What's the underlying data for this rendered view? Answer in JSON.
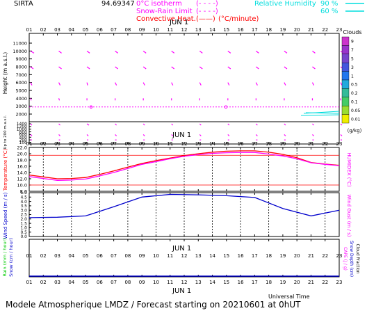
{
  "station": "SIRTA",
  "station_code": "94.69347",
  "header": {
    "isotherm_label": "0°C isotherm",
    "isotherm_key": "(- - - -)",
    "snow_rain_label": "Snow-Rain Limit",
    "snow_rain_key": "(- - - -)",
    "convective_label": "Convective Heat.",
    "convective_key": "(——)",
    "convective_unit": "(°C/minute)",
    "rh_label": "Relative Humidity",
    "rh_90": "90 %",
    "rh_60": "60 %"
  },
  "colors": {
    "magenta": "#ff00ff",
    "red": "#ff0000",
    "cyan": "#00dddd",
    "blue": "#0000cc",
    "green": "#00cc00",
    "black": "#000000"
  },
  "date_label": "JUN   1",
  "hour_labels": [
    "01",
    "02",
    "03",
    "04",
    "05",
    "06",
    "07",
    "08",
    "09",
    "10",
    "11",
    "12",
    "13",
    "14",
    "15",
    "16",
    "17",
    "18",
    "19",
    "20",
    "21",
    "22",
    "23"
  ],
  "footer": "Modele Atmospherique LMDZ / Forecast starting on 20210601 at 0hUT",
  "universal_time": "Universal Time",
  "clouds": {
    "title": "Clouds",
    "unit": "(g/kg)",
    "levels": [
      {
        "label": "9",
        "color": "#cc33cc"
      },
      {
        "label": "7",
        "color": "#9933cc"
      },
      {
        "label": "5",
        "color": "#7744cc"
      },
      {
        "label": "3",
        "color": "#4455dd"
      },
      {
        "label": "1",
        "color": "#2277ee"
      },
      {
        "label": "0.5",
        "color": "#22aadd"
      },
      {
        "label": "0.2",
        "color": "#33bb99"
      },
      {
        "label": "0.1",
        "color": "#44cc66"
      },
      {
        "label": "0.05",
        "color": "#99dd33"
      },
      {
        "label": "0.01",
        "color": "#eeee00"
      }
    ]
  },
  "chart_data": [
    {
      "type": "wind-barbs",
      "ylabel": "Height  (m a.s.l.)",
      "ylabel2": "Up to 200 m a.s.l.",
      "upper_ticks": [
        "11000",
        "10000",
        "9000",
        "8000",
        "7000",
        "6000",
        "5000",
        "4000",
        "3000",
        "2000"
      ],
      "lower_ticks": [
        "1400",
        "1200",
        "1000",
        "800",
        "600",
        "400",
        "200",
        "100"
      ],
      "isotherm_height": 2900,
      "rows": [
        {
          "level": "10000",
          "segs": [
            [
              -5,
              -3
            ],
            [
              -4,
              -3
            ],
            [
              -4,
              -3
            ],
            [
              -4,
              -3
            ],
            [
              -4,
              -3
            ],
            [
              -4,
              -3
            ],
            [
              -4,
              -3
            ],
            [
              -4,
              -3
            ],
            [
              -4,
              -3
            ],
            [
              -4,
              -3
            ],
            [
              -4,
              -3
            ],
            [
              -5,
              -4
            ]
          ]
        },
        {
          "level": "8000",
          "segs": [
            [
              -4,
              -3
            ],
            [
              -4,
              -3
            ],
            [
              -4,
              -3
            ],
            [
              -4,
              -3
            ],
            [
              -4,
              -3
            ],
            [
              -4,
              -3
            ],
            [
              -4,
              -3
            ],
            [
              -4,
              -3
            ],
            [
              -4,
              -3
            ],
            [
              -4,
              -3
            ],
            [
              -4,
              -3
            ],
            [
              -4,
              -3
            ]
          ]
        },
        {
          "level": "6000",
          "segs": [
            [
              -2,
              -4
            ],
            [
              -2,
              -4
            ],
            [
              -1,
              -4
            ],
            [
              -2,
              -4
            ],
            [
              -2,
              -4
            ],
            [
              -2,
              -4
            ],
            [
              -2,
              -4
            ],
            [
              -2,
              -4
            ],
            [
              -2,
              -4
            ],
            [
              -2,
              -4
            ],
            [
              -2,
              -4
            ],
            [
              -2,
              -4
            ]
          ]
        },
        {
          "level": "4000",
          "segs": [
            [
              -1,
              -3
            ],
            [
              -1,
              -3
            ],
            [
              0,
              -3
            ],
            [
              0,
              -3
            ],
            [
              0,
              -3
            ],
            [
              0,
              -3
            ],
            [
              0,
              -3
            ],
            [
              0,
              -3
            ],
            [
              0,
              -3
            ],
            [
              0,
              -3
            ],
            [
              0,
              -3
            ],
            [
              0,
              -3
            ]
          ]
        },
        {
          "level": "1400",
          "segs": [
            [
              -2,
              -2
            ],
            [
              -2,
              -2
            ],
            [
              -3,
              -2
            ],
            [
              -2,
              -2
            ],
            [
              -2,
              -2
            ],
            [
              -2,
              -2
            ],
            [
              -2,
              -2
            ],
            [
              -2,
              -2
            ],
            [
              -2,
              -2
            ],
            [
              -2,
              -2
            ],
            [
              -2,
              -2
            ],
            [
              -2,
              -2
            ]
          ]
        },
        {
          "level": "600",
          "segs": [
            [
              -2,
              -2
            ],
            [
              -2,
              -2
            ],
            [
              -2,
              -2
            ],
            [
              -2,
              -2
            ],
            [
              -2,
              -2
            ],
            [
              -2,
              -2
            ],
            [
              -2,
              -2
            ],
            [
              -2,
              -2
            ],
            [
              -2,
              -2
            ],
            [
              -2,
              -2
            ],
            [
              -2,
              -2
            ],
            [
              -2,
              -2
            ]
          ]
        },
        {
          "level": "200",
          "segs": [
            [
              -2,
              0
            ],
            [
              -2,
              0
            ],
            [
              -2,
              0
            ],
            [
              -2,
              0
            ],
            [
              -2,
              0
            ],
            [
              -2,
              0
            ],
            [
              -2,
              0
            ],
            [
              -2,
              0
            ],
            [
              -2,
              0
            ],
            [
              -2,
              0
            ],
            [
              -2,
              0
            ],
            [
              -2,
              0
            ]
          ]
        }
      ]
    },
    {
      "type": "line",
      "ylabel": "Temperature (°C)",
      "ylabel_right": "HUMIDEX (°C)",
      "yticks": [
        "8.0",
        "10.0",
        "12.0",
        "14.0",
        "16.0",
        "18.0",
        "20.0",
        "22.0"
      ],
      "ylim": [
        8,
        22
      ],
      "ref_lines": [
        10.0,
        19.5
      ],
      "x": [
        1,
        2,
        3,
        4,
        5,
        6,
        7,
        8,
        9,
        10,
        11,
        12,
        13,
        14,
        15,
        16,
        17,
        18,
        19,
        20,
        21,
        22,
        23
      ],
      "series": [
        {
          "values": [
            13.2,
            12.6,
            12.0,
            12.1,
            12.4,
            13.4,
            14.5,
            15.7,
            16.9,
            17.8,
            18.6,
            19.4,
            20.0,
            20.5,
            20.8,
            20.9,
            20.9,
            20.5,
            19.8,
            18.7,
            17.2,
            16.7,
            16.3
          ],
          "color": "#ff0000"
        },
        {
          "values": [
            12.7,
            12.1,
            11.5,
            11.6,
            11.9,
            12.9,
            14.0,
            15.3,
            16.6,
            17.5,
            18.4,
            19.2,
            19.7,
            20.1,
            20.3,
            20.4,
            20.4,
            19.9,
            19.3,
            18.4,
            17.1,
            16.6,
            16.2
          ],
          "color": "#ff00ff"
        }
      ]
    },
    {
      "type": "line",
      "ylabel": "Wind Speed (m / s)",
      "ylabel_right": "Wind Gust (m / s)",
      "yticks": [
        "0.0",
        "0.5",
        "1.0",
        "1.5",
        "2.0",
        "2.5",
        "3.0",
        "3.5",
        "4.0",
        "4.5",
        "5.0"
      ],
      "ylim": [
        0,
        5
      ],
      "x": [
        1,
        3,
        5,
        7,
        9,
        11,
        13,
        15,
        17,
        19,
        21,
        23
      ],
      "series": [
        {
          "values": [
            2.15,
            2.2,
            2.35,
            3.4,
            4.5,
            4.8,
            4.75,
            4.65,
            4.45,
            3.2,
            2.35,
            3.0
          ],
          "color": "#0000cc"
        }
      ]
    },
    {
      "type": "line",
      "ylabel": "Rain (mm / hour)",
      "ylabel2": "Snow (cm / hour)",
      "ylabel_right": "CAPE (J / g)",
      "ylabel_right2": "Snow Depth (cm)",
      "ylabel_right3": "Cloud Fraction",
      "x": [
        1,
        23
      ],
      "series": [
        {
          "values": [
            0,
            0
          ],
          "color": "#0000cc"
        }
      ]
    }
  ]
}
